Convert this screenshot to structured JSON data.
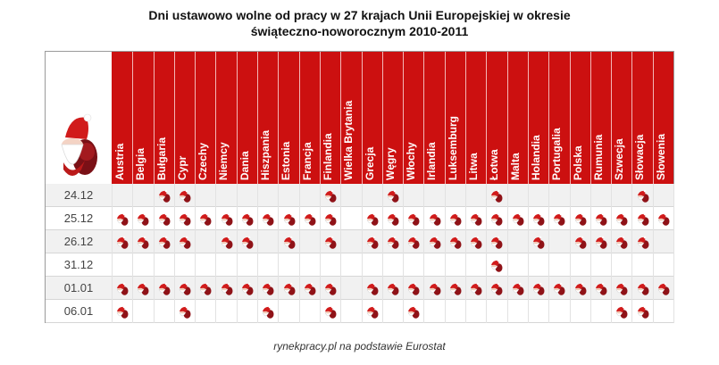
{
  "title": {
    "line1": "Dni ustawowo wolne od pracy w 27 krajach Unii Europejskiej w okresie",
    "line2": "świąteczno-noworocznym 2010-2011"
  },
  "source": "rynekpracy.pl na podstawie Eurostat",
  "colors": {
    "header": "#cc1010",
    "marker": "#c0151a",
    "hat": "#d11b1b"
  },
  "chart_data": {
    "type": "table",
    "countries": [
      "Austria",
      "Belgia",
      "Bułgaria",
      "Cypr",
      "Czechy",
      "Niemcy",
      "Dania",
      "Hiszpania",
      "Estonia",
      "Francja",
      "Finlandia",
      "Wielka Brytania",
      "Grecja",
      "Węgry",
      "Włochy",
      "Irlandia",
      "Luksemburg",
      "Litwa",
      "Łotwa",
      "Malta",
      "Holandia",
      "Portugalia",
      "Polska",
      "Rumunia",
      "Szwecja",
      "Słowacja",
      "Słowenia"
    ],
    "dates": [
      "24.12",
      "25.12",
      "26.12",
      "31.12",
      "01.01",
      "06.01"
    ],
    "holidays": [
      [
        0,
        0,
        1,
        1,
        0,
        0,
        0,
        0,
        0,
        0,
        1,
        0,
        0,
        1,
        0,
        0,
        0,
        0,
        1,
        0,
        0,
        0,
        0,
        0,
        0,
        1,
        0
      ],
      [
        1,
        1,
        1,
        1,
        1,
        1,
        1,
        1,
        1,
        1,
        1,
        0,
        1,
        1,
        1,
        1,
        1,
        1,
        1,
        1,
        1,
        1,
        1,
        1,
        1,
        1,
        1
      ],
      [
        1,
        1,
        1,
        1,
        0,
        1,
        1,
        0,
        1,
        0,
        1,
        0,
        1,
        1,
        1,
        1,
        1,
        1,
        1,
        0,
        1,
        0,
        1,
        1,
        1,
        1,
        0
      ],
      [
        0,
        0,
        0,
        0,
        0,
        0,
        0,
        0,
        0,
        0,
        0,
        0,
        0,
        0,
        0,
        0,
        0,
        0,
        1,
        0,
        0,
        0,
        0,
        0,
        0,
        0,
        0
      ],
      [
        1,
        1,
        1,
        1,
        1,
        1,
        1,
        1,
        1,
        1,
        1,
        0,
        1,
        1,
        1,
        1,
        1,
        1,
        1,
        1,
        1,
        1,
        1,
        1,
        1,
        1,
        1
      ],
      [
        1,
        0,
        0,
        1,
        0,
        0,
        0,
        1,
        0,
        0,
        1,
        0,
        1,
        0,
        1,
        0,
        0,
        0,
        0,
        0,
        0,
        0,
        0,
        0,
        1,
        1,
        0
      ]
    ]
  }
}
